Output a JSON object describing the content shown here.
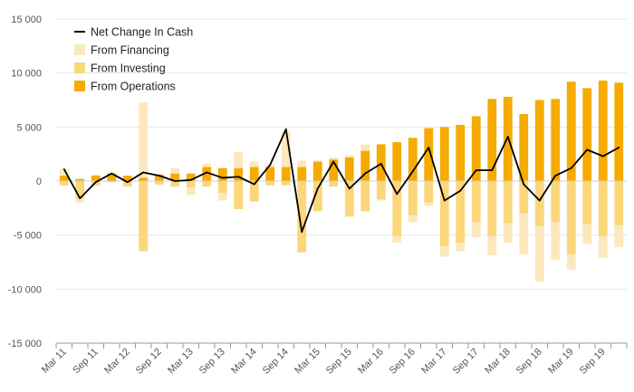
{
  "chart_data": {
    "type": "bar",
    "stacked": true,
    "title": "",
    "xlabel": "",
    "ylabel": "",
    "ylim": [
      -15000,
      15000
    ],
    "yticks": [
      -15000,
      -10000,
      -5000,
      0,
      5000,
      10000,
      15000
    ],
    "ytick_labels": [
      "-15 000",
      "-10 000",
      "-5 000",
      "0",
      "5 000",
      "10 000",
      "15 000"
    ],
    "grid": true,
    "legend_position": "top-left",
    "categories": [
      "Mar 11",
      "Jun 11",
      "Sep 11",
      "Dec 11",
      "Mar 12",
      "Jun 12",
      "Sep 12",
      "Dec 12",
      "Mar 13",
      "Jun 13",
      "Sep 13",
      "Dec 13",
      "Mar 14",
      "Jun 14",
      "Sep 14",
      "Dec 14",
      "Mar 15",
      "Jun 15",
      "Sep 15",
      "Dec 15",
      "Mar 16",
      "Jun 16",
      "Sep 16",
      "Dec 16",
      "Mar 17",
      "Jun 17",
      "Sep 17",
      "Dec 17",
      "Mar 18",
      "Jun 18",
      "Sep 18",
      "Dec 18",
      "Mar 19",
      "Jun 19",
      "Sep 19",
      "Dec 19"
    ],
    "x_tick_labels": [
      "Mar 11",
      "Sep 11",
      "Mar 12",
      "Sep 12",
      "Mar 13",
      "Sep 13",
      "Mar 14",
      "Sep 14",
      "Mar 15",
      "Sep 15",
      "Mar 16",
      "Sep 16",
      "Mar 17",
      "Sep 17",
      "Mar 18",
      "Sep 18",
      "Mar 19",
      "Sep 19"
    ],
    "series": [
      {
        "name": "From Operations",
        "kind": "bar",
        "color": "#f5ab00",
        "values": [
          500,
          200,
          500,
          700,
          500,
          300,
          600,
          700,
          700,
          1300,
          1200,
          1200,
          1300,
          1300,
          1300,
          1300,
          1800,
          2000,
          2200,
          2800,
          3400,
          3600,
          4000,
          4900,
          5000,
          5200,
          6000,
          7600,
          7800,
          6200,
          7500,
          7600,
          9200,
          8600,
          9300,
          9100
        ]
      },
      {
        "name": "From Investing",
        "kind": "bar",
        "color": "#fbd67a",
        "values": [
          -400,
          -1600,
          -400,
          -100,
          -500,
          -6500,
          -300,
          -500,
          -600,
          -500,
          -1100,
          -2600,
          -1900,
          -400,
          -400,
          -6600,
          -2800,
          -500,
          -3300,
          -2800,
          -1700,
          -5100,
          -3200,
          -2000,
          -6000,
          -5700,
          -3800,
          -5100,
          -3900,
          -3000,
          -4200,
          -3800,
          -6800,
          -4000,
          -5100,
          -4100
        ]
      },
      {
        "name": "From Financing",
        "kind": "bar",
        "color": "#fde8bd",
        "values": [
          600,
          -400,
          100,
          100,
          0,
          7000,
          -100,
          500,
          -700,
          300,
          -700,
          1500,
          500,
          200,
          3300,
          600,
          100,
          200,
          200,
          600,
          -100,
          -600,
          -600,
          -300,
          -1000,
          -800,
          -1400,
          -1800,
          -1800,
          -3800,
          -5100,
          -3500,
          -1400,
          -1800,
          -2000,
          -2000
        ]
      },
      {
        "name": "Net Change In Cash",
        "kind": "line",
        "color": "#000000",
        "values": [
          1100,
          -1600,
          -100,
          700,
          -100,
          800,
          500,
          0,
          100,
          800,
          300,
          400,
          -300,
          1500,
          4800,
          -4700,
          -700,
          1800,
          -700,
          700,
          1600,
          -1200,
          900,
          3100,
          -1800,
          -900,
          1000,
          1000,
          4100,
          -300,
          -1800,
          500,
          1200,
          2900,
          2300,
          3100
        ]
      }
    ],
    "legend": [
      {
        "label": "Net Change In Cash",
        "kind": "line",
        "color": "#000000"
      },
      {
        "label": "From Financing",
        "kind": "bar",
        "color": "#fde8bd"
      },
      {
        "label": "From Investing",
        "kind": "bar",
        "color": "#fbd67a"
      },
      {
        "label": "From Operations",
        "kind": "bar",
        "color": "#f5ab00"
      }
    ]
  }
}
